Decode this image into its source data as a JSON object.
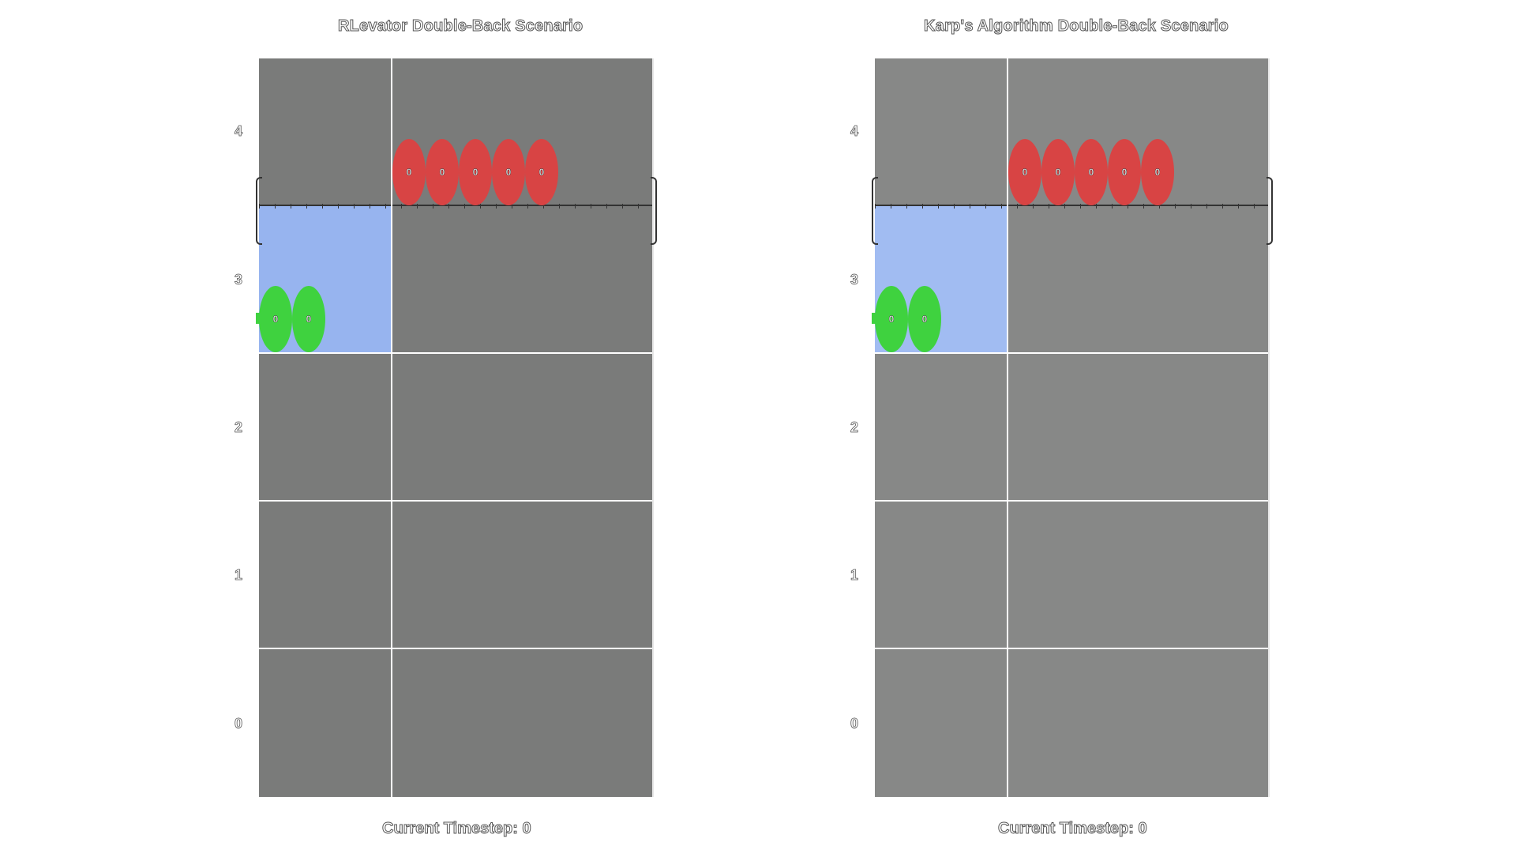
{
  "panels": [
    {
      "title": "RLevator Double-Back Scenario",
      "timestep_label": "Current Timestep: 0",
      "floors": [
        "4",
        "3",
        "2",
        "1",
        "0"
      ],
      "colors": {
        "grid": "#7a7b7a",
        "elevator": "#97b4ef",
        "waiting": "#d84444",
        "riding": "#3fd23f"
      },
      "waiting_passengers": [
        "0",
        "0",
        "0",
        "0",
        "0"
      ],
      "riding_passengers": [
        "0",
        "0"
      ]
    },
    {
      "title": "Karp's Algorithm Double-Back Scenario",
      "timestep_label": "Current Timestep: 0",
      "floors": [
        "4",
        "3",
        "2",
        "1",
        "0"
      ],
      "colors": {
        "grid": "#878887",
        "elevator": "#a1bcf2",
        "waiting": "#d84444",
        "riding": "#3fd23f"
      },
      "waiting_passengers": [
        "0",
        "0",
        "0",
        "0",
        "0"
      ],
      "riding_passengers": [
        "0",
        "0"
      ]
    }
  ]
}
